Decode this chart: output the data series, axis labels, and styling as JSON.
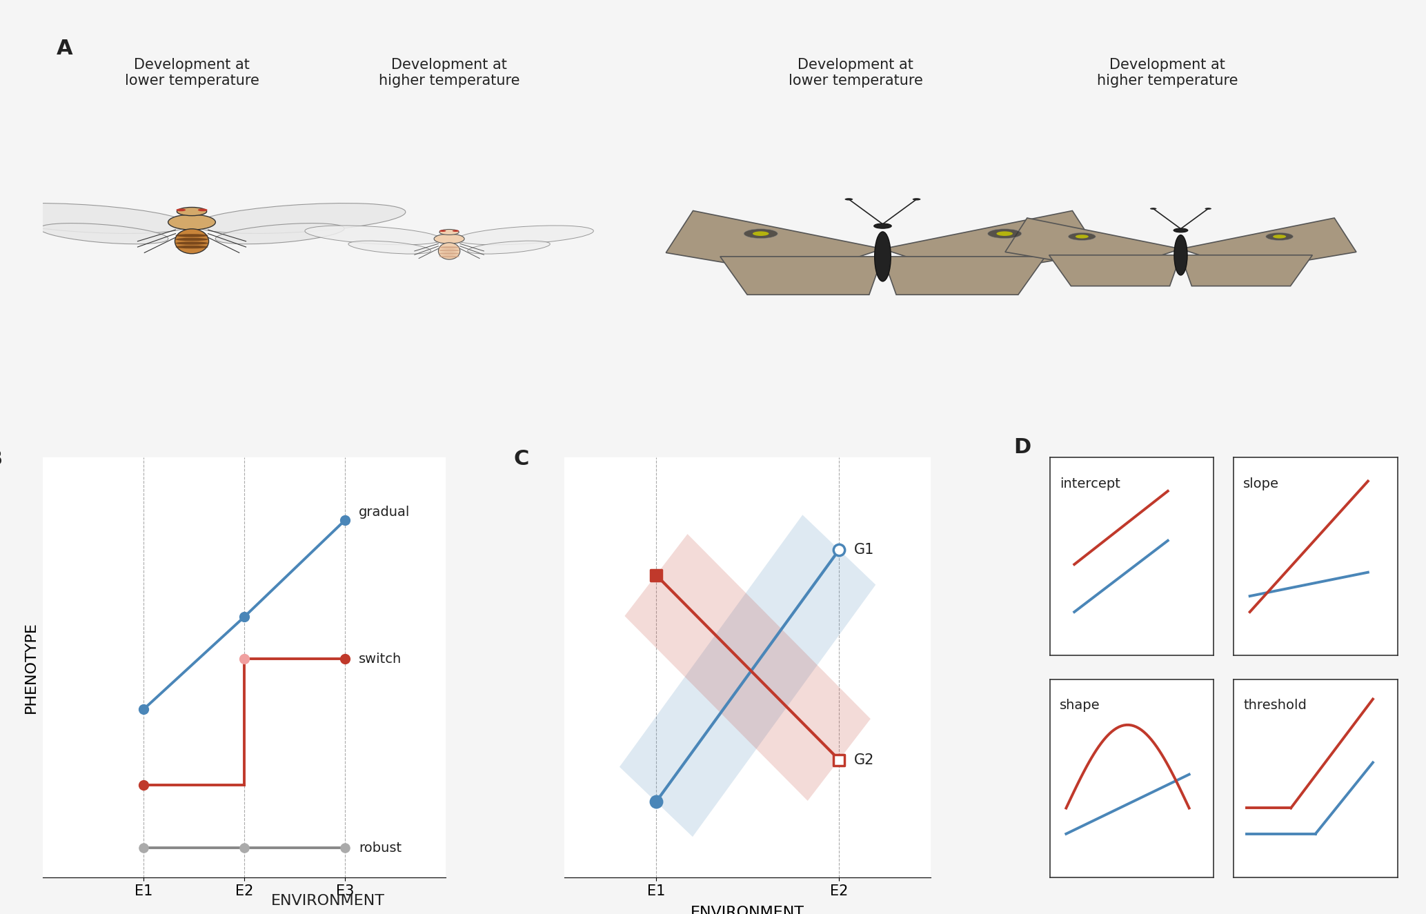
{
  "bg_color": "#f5f5f5",
  "panel_bg": "#ffffff",
  "blue_color": "#4a86b8",
  "red_color": "#c0392b",
  "gray_color": "#888888",
  "blue_fill": "#4a86b8",
  "red_fill": "#c0392b",
  "blue_alpha": 0.18,
  "red_alpha": 0.18,
  "panel_A_labels": [
    "Development at\nlower temperature",
    "Development at\nhigher temperature",
    "Development at\nlower temperature",
    "Development at\nhigher temperature"
  ],
  "panel_B_xlabel": "ENVIRONMENT",
  "panel_B_ylabel": "PHENOTYPE",
  "panel_B_xticks": [
    "E1",
    "E2",
    "E3"
  ],
  "panel_C_xlabel": "ENVIRONMENT",
  "panel_C_xticks": [
    "E1",
    "E2"
  ],
  "panel_C_labels": [
    "G1",
    "G2"
  ],
  "panel_D_labels": [
    "intercept",
    "slope",
    "shape",
    "threshold"
  ],
  "label_fontsize": 16,
  "tick_fontsize": 15,
  "annot_fontsize": 16,
  "panel_letter_fontsize": 22
}
